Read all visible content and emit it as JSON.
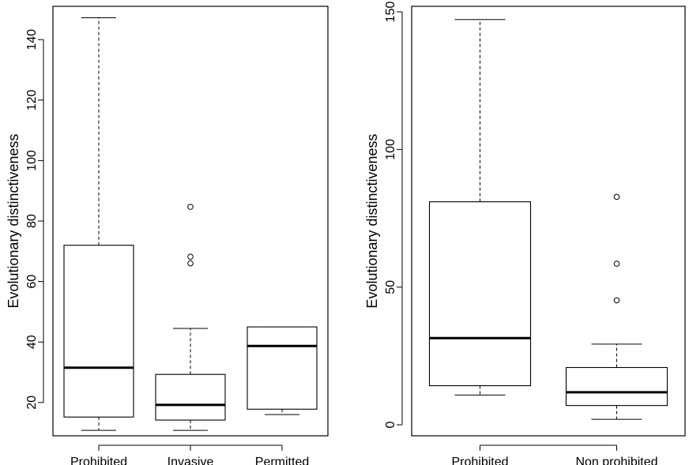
{
  "chart_data": [
    {
      "type": "box",
      "ylabel": "Evolutionary distinctiveness",
      "xlabel": "",
      "title": "",
      "categories": [
        "Prohibited",
        "Invasive",
        "Permitted"
      ],
      "yticks": [
        20,
        40,
        60,
        80,
        100,
        120,
        140
      ],
      "ylim": [
        9,
        151
      ],
      "boxes": [
        {
          "name": "Prohibited",
          "min": 10.8,
          "q1": 15.2,
          "median": 31.5,
          "q3": 72.0,
          "max": 147.2,
          "outliers": []
        },
        {
          "name": "Invasive",
          "min": 10.8,
          "q1": 14.2,
          "median": 19.2,
          "q3": 29.3,
          "max": 44.5,
          "outliers": [
            66.0,
            68.2,
            84.7
          ]
        },
        {
          "name": "Permitted",
          "min": 16.0,
          "q1": 17.8,
          "median": 38.7,
          "q3": 45.0,
          "max": 45.0,
          "outliers": []
        }
      ]
    },
    {
      "type": "box",
      "ylabel": "Evolutionary distinctiveness",
      "xlabel": "",
      "title": "",
      "categories": [
        "Prohibited",
        "Non prohibited"
      ],
      "yticks": [
        0,
        50,
        100,
        150
      ],
      "ylim": [
        -4,
        152
      ],
      "boxes": [
        {
          "name": "Prohibited",
          "min": 10.8,
          "q1": 14.2,
          "median": 31.5,
          "q3": 81.0,
          "max": 147.2,
          "outliers": []
        },
        {
          "name": "Non prohibited",
          "min": 2.0,
          "q1": 7.0,
          "median": 11.8,
          "q3": 20.8,
          "max": 29.3,
          "outliers": [
            45.2,
            58.5,
            82.8
          ]
        }
      ]
    }
  ]
}
